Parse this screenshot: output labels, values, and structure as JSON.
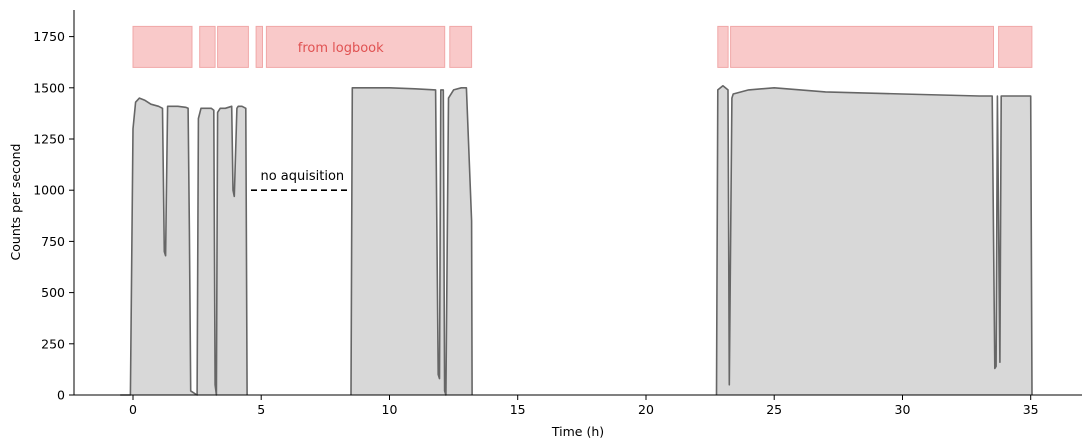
{
  "chart_data": {
    "type": "area",
    "title": "",
    "xlabel": "Time (h)",
    "ylabel": "Counts per second",
    "xlim": [
      -2.3,
      37
    ],
    "ylim": [
      0,
      1880
    ],
    "xticks": [
      0,
      5,
      10,
      15,
      20,
      25,
      30,
      35
    ],
    "yticks": [
      0,
      250,
      500,
      750,
      1000,
      1250,
      1500,
      1750
    ],
    "grid": false,
    "colors": {
      "fill": "#d8d8d8",
      "fill_edge": "#bdbdbd",
      "trace": "#666666",
      "logbook_fill": "#f9c9c9",
      "logbook_edge": "#f0a8a8",
      "logbook_text": "#e05252",
      "dashed_line": "#000000"
    },
    "series": [
      {
        "name": "",
        "x": [
          -0.5,
          -0.1,
          0.0,
          0.1,
          0.25,
          0.45,
          0.7,
          1.0,
          1.15,
          1.22,
          1.27,
          1.3,
          1.35,
          1.45,
          1.75,
          2.05,
          2.15,
          2.2,
          2.25,
          2.5,
          2.55,
          2.65,
          2.8,
          3.05,
          3.15,
          3.2,
          3.25,
          3.3,
          3.4,
          3.6,
          3.85,
          3.9,
          3.95,
          4.05,
          4.1,
          4.25,
          4.4,
          4.45
        ],
        "y": [
          0,
          0,
          1300,
          1430,
          1450,
          1440,
          1420,
          1410,
          1400,
          700,
          680,
          950,
          1410,
          1410,
          1410,
          1405,
          1400,
          800,
          20,
          0,
          1350,
          1400,
          1400,
          1400,
          1390,
          50,
          0,
          1380,
          1400,
          1400,
          1410,
          1000,
          970,
          1400,
          1410,
          1410,
          1400,
          0
        ]
      },
      {
        "name": "",
        "x": [
          8.5,
          8.55,
          9.0,
          10.0,
          11.0,
          11.8,
          11.9,
          11.95,
          12.0,
          12.1,
          12.15,
          12.2,
          12.3,
          12.5,
          12.8,
          13.0,
          13.2,
          13.22
        ],
        "y": [
          0,
          1500,
          1500,
          1500,
          1495,
          1490,
          100,
          80,
          1490,
          1490,
          20,
          0,
          1450,
          1490,
          1500,
          1500,
          850,
          0
        ]
      },
      {
        "name": "",
        "x": [
          22.75,
          22.8,
          23.0,
          23.2,
          23.25,
          23.35,
          23.4,
          24.0,
          25.0,
          27.0,
          30.0,
          33.0,
          33.5,
          33.6,
          33.65,
          33.7,
          33.8,
          33.85,
          33.9,
          34.2,
          34.6,
          35.0,
          35.05
        ],
        "y": [
          0,
          1490,
          1510,
          1490,
          50,
          1450,
          1470,
          1490,
          1500,
          1480,
          1470,
          1460,
          1460,
          130,
          140,
          1460,
          160,
          1460,
          1460,
          1460,
          1460,
          1460,
          0
        ]
      }
    ],
    "logbook_segments": [
      [
        0.0,
        2.3
      ],
      [
        2.6,
        3.2
      ],
      [
        3.3,
        4.5
      ],
      [
        4.8,
        5.05
      ],
      [
        5.2,
        12.15
      ],
      [
        12.35,
        13.2
      ],
      [
        22.8,
        23.2
      ],
      [
        23.3,
        33.55
      ],
      [
        33.75,
        35.05
      ]
    ],
    "logbook_range": [
      1600,
      1800
    ],
    "annotations": [
      {
        "text": "from logbook",
        "x": 8.1,
        "y": 1700,
        "color": "#e05252"
      },
      {
        "text": "no aquisition",
        "x": 6.6,
        "y": 1075,
        "color": "#000000"
      }
    ],
    "gap_line": {
      "x": [
        4.6,
        8.5
      ],
      "y": 1000
    }
  }
}
